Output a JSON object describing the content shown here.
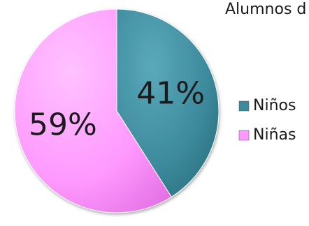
{
  "chart_data": {
    "type": "pie",
    "title": "Alumnos d",
    "slices": [
      {
        "label": "Niños",
        "value": 41,
        "display": "41%",
        "color": "#3c8a9c"
      },
      {
        "label": "Niñas",
        "value": 59,
        "display": "59%",
        "color": "#ff99ff"
      }
    ],
    "legend_position": "right"
  }
}
